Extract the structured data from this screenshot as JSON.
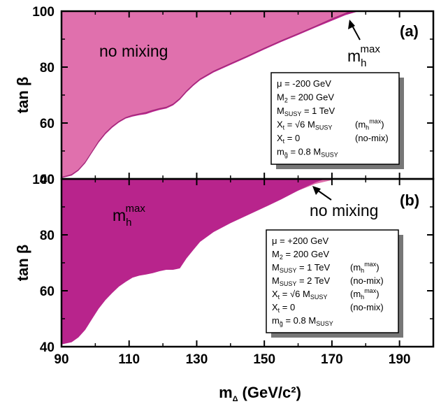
{
  "chart_data": {
    "type": "area",
    "xlabel": "m",
    "xlabel_sub": "Δ",
    "xlabel_units": "(GeV/c²)",
    "ylabel": "tan β",
    "xlim": [
      90,
      200
    ],
    "ylim": [
      40,
      100
    ],
    "x_ticks": [
      90,
      110,
      130,
      150,
      170,
      190
    ],
    "y_ticks": [
      40,
      60,
      80,
      100
    ],
    "colors": {
      "light": "#e070ad",
      "dark": "#b8248c",
      "box_shadow": "#777777"
    },
    "panels": [
      {
        "tag": "(a)",
        "labels": {
          "no_mixing": "no mixing",
          "mhmax_main": "m",
          "mhmax_sub": "h",
          "mhmax_sup": "max"
        },
        "series": [
          {
            "name": "no mixing",
            "role": "light",
            "x": [
              90,
              93,
              95,
              97,
              99,
              101,
              103,
              105,
              107,
              109,
              111,
              113,
              115,
              117,
              119,
              121,
              123,
              125,
              127,
              129,
              131,
              135,
              140,
              145,
              150,
              155,
              160,
              165,
              170,
              173.5,
              175.5
            ],
            "y": [
              40.6,
              41.6,
              43.3,
              46,
              49.7,
              53.5,
              56.5,
              58.8,
              60.6,
              62,
              62.8,
              63.3,
              63.8,
              64.6,
              65.2,
              65.7,
              66.8,
              68.8,
              71.5,
              73.8,
              75.8,
              78.6,
              81.3,
              84,
              86.8,
              89.5,
              92,
              94.6,
              97.3,
              99,
              100
            ]
          },
          {
            "name": "m_h^max",
            "role": "dark",
            "x": [
              90,
              93,
              95,
              97,
              99,
              101,
              103,
              105,
              107,
              109,
              111,
              113,
              115,
              117,
              119,
              121,
              123,
              125,
              127,
              129,
              131,
              135,
              140,
              145,
              150,
              155,
              160,
              165,
              170,
              174,
              178
            ],
            "y": [
              40.3,
              41.2,
              42.9,
              45.6,
              49.3,
              53,
              56,
              58.3,
              60.2,
              61.6,
              62.3,
              62.8,
              63.2,
              64,
              64.7,
              65.2,
              66.3,
              68.3,
              71,
              73.3,
              75.3,
              78.1,
              80.8,
              83.5,
              86.3,
              89,
              91.5,
              94.1,
              96.6,
              98.6,
              100
            ]
          }
        ],
        "legend": [
          {
            "t": "μ = -200 GeV"
          },
          {
            "m": "M",
            "sub": "2",
            "t": " = 200 GeV"
          },
          {
            "m": "M",
            "sub": "SUSY",
            "t": " = 1 TeV"
          },
          {
            "m": "X",
            "sub": "t",
            "t": " = √6 M",
            "sub2": "SUSY",
            "note": "(m",
            "nsub": "h",
            "nsup": "max",
            "nend": ")"
          },
          {
            "m": "X",
            "sub": "t",
            "t": " = 0",
            "note": "(no-mix)"
          },
          {
            "m": "m",
            "sub": "g̃",
            "t": " = 0.8 M",
            "sub2": "SUSY"
          }
        ]
      },
      {
        "tag": "(b)",
        "labels": {
          "no_mixing": "no mixing",
          "mhmax_main": "m",
          "mhmax_sub": "h",
          "mhmax_sup": "max"
        },
        "series": [
          {
            "name": "no mixing",
            "role": "light",
            "x": [
              90,
              93,
              95,
              97,
              99,
              101,
              103,
              105,
              107,
              109,
              111,
              113,
              115,
              117,
              119,
              121,
              123,
              125,
              127,
              129,
              131,
              135,
              140,
              145,
              150,
              155,
              160,
              165,
              170,
              172
            ],
            "y": [
              41.5,
              42.4,
              44.2,
              47.2,
              51.2,
              55.2,
              58.4,
              61,
              63.3,
              64.8,
              65.8,
              66.5,
              67,
              67.8,
              68.5,
              69,
              69.5,
              70.3,
              73,
              75.8,
              78.4,
              81.7,
              84.8,
              87.6,
              90.4,
              93.2,
              95.8,
              98.2,
              99.6,
              100
            ]
          },
          {
            "name": "m_h^max",
            "role": "dark",
            "x": [
              90,
              93,
              95,
              97,
              99,
              101,
              103,
              105,
              107,
              109,
              111,
              113,
              115,
              117,
              119,
              121,
              123,
              125,
              127,
              129,
              131,
              135,
              140,
              145,
              150,
              155,
              160,
              165,
              168
            ],
            "y": [
              40.8,
              41.6,
              43.3,
              46,
              49.8,
              53.6,
              56.7,
              59.2,
              61.5,
              63.2,
              64.7,
              65.4,
              65.8,
              66.3,
              67,
              67.5,
              67.5,
              68,
              71.6,
              74.6,
              77.5,
              81,
              84.2,
              87,
              89.8,
              92.7,
              95.8,
              98.7,
              100
            ]
          }
        ],
        "legend": [
          {
            "t": "μ = +200 GeV"
          },
          {
            "m": "M",
            "sub": "2",
            "t": " = 200 GeV"
          },
          {
            "m": "M",
            "sub": "SUSY",
            "t": " = 1 TeV",
            "note": "(m",
            "nsub": "h",
            "nsup": "max",
            "nend": ")"
          },
          {
            "m": "M",
            "sub": "SUSY",
            "t": " = 2 TeV",
            "note": "(no-mix)"
          },
          {
            "m": "X",
            "sub": "t",
            "t": " = √6 M",
            "sub2": "SUSY",
            "note": "(m",
            "nsub": "h",
            "nsup": "max",
            "nend": ")"
          },
          {
            "m": "X",
            "sub": "t",
            "t": " = 0",
            "note": "(no-mix)"
          },
          {
            "m": "m",
            "sub": "g̃",
            "t": " = 0.8 M",
            "sub2": "SUSY"
          }
        ]
      }
    ]
  }
}
